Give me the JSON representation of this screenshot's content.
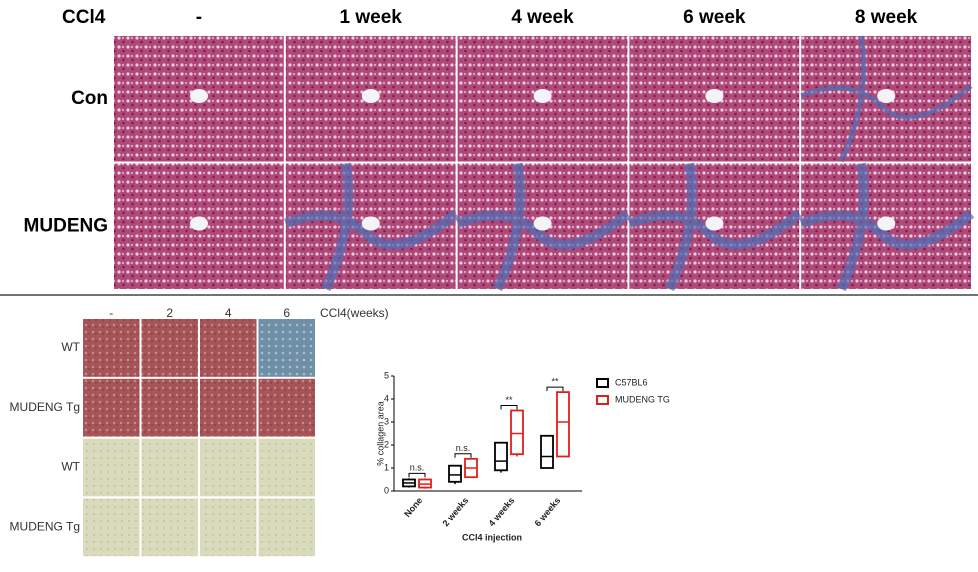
{
  "top_panel": {
    "row_header": "CCl4",
    "columns": [
      "-",
      "1 week",
      "4 week",
      "6 week",
      "8 week"
    ],
    "rows": [
      "Con",
      "MUDENG"
    ]
  },
  "bottom_panel": {
    "column_header": "CCl4(weeks)",
    "columns": [
      "-",
      "2",
      "4",
      "6"
    ],
    "rows": [
      "WT",
      "MUDENG Tg",
      "WT",
      "MUDENG Tg"
    ]
  },
  "chart_data": {
    "type": "box",
    "ylabel": "% collagen area",
    "xlabel": "CCl4 injection",
    "categories": [
      "None",
      "2 weeks",
      "4 weeks",
      "6 weeks"
    ],
    "ylim": [
      0,
      5
    ],
    "yticks": [
      0,
      1,
      2,
      3,
      4,
      5
    ],
    "significance": [
      "n.s.",
      "n.s.",
      "**",
      "**"
    ],
    "series": [
      {
        "name": "C57BL6",
        "color": "#000000",
        "min": [
          0.15,
          0.3,
          0.8,
          1.0
        ],
        "q1": [
          0.2,
          0.4,
          0.9,
          1.0
        ],
        "median": [
          0.35,
          0.7,
          1.3,
          1.5
        ],
        "q3": [
          0.5,
          1.1,
          2.1,
          2.4
        ],
        "max": [
          0.55,
          1.1,
          2.1,
          2.4
        ]
      },
      {
        "name": "MUDENG TG",
        "color": "#e0201b",
        "min": [
          0.1,
          0.6,
          1.5,
          1.5
        ],
        "q1": [
          0.15,
          0.6,
          1.6,
          1.5
        ],
        "median": [
          0.3,
          1.0,
          2.5,
          3.0
        ],
        "q3": [
          0.5,
          1.4,
          3.5,
          4.3
        ],
        "max": [
          0.55,
          1.4,
          3.5,
          4.3
        ]
      }
    ]
  }
}
